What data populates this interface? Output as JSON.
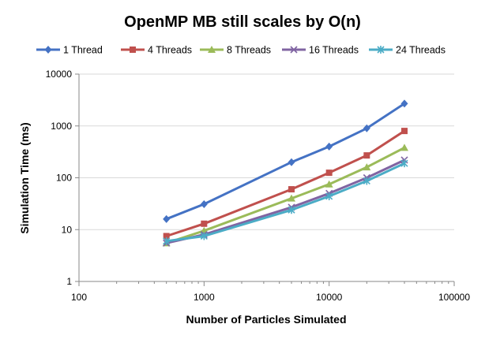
{
  "chart_data": {
    "type": "line",
    "title": "OpenMP MB still scales by O(n)",
    "xlabel": "Number of Particles Simulated",
    "ylabel": "Simulation Time (ms)",
    "x_scale": "log",
    "y_scale": "log",
    "xlim": [
      100,
      100000
    ],
    "ylim": [
      1,
      10000
    ],
    "x_ticks": [
      "100",
      "1000",
      "10000",
      "100000"
    ],
    "y_ticks": [
      "1",
      "10",
      "100",
      "1000",
      "10000"
    ],
    "grid": "horizontal major gridlines",
    "legend_position": "top",
    "x": [
      500,
      1000,
      5000,
      10000,
      20000,
      40000
    ],
    "series": [
      {
        "name": "1 Thread",
        "color": "#4472C4",
        "marker": "diamond",
        "values": [
          16,
          31,
          200,
          400,
          900,
          2700
        ]
      },
      {
        "name": "4 Threads",
        "color": "#C0504D",
        "marker": "square",
        "values": [
          7.5,
          13,
          60,
          125,
          270,
          800
        ]
      },
      {
        "name": "8 Threads",
        "color": "#9BBB59",
        "marker": "triangle",
        "values": [
          5.5,
          9.5,
          40,
          75,
          160,
          380
        ]
      },
      {
        "name": "16 Threads",
        "color": "#8064A2",
        "marker": "x",
        "values": [
          5.5,
          8,
          27,
          50,
          100,
          220
        ]
      },
      {
        "name": "24 Threads",
        "color": "#4BACC6",
        "marker": "star",
        "values": [
          6,
          7.5,
          24,
          44,
          87,
          190
        ]
      }
    ]
  }
}
